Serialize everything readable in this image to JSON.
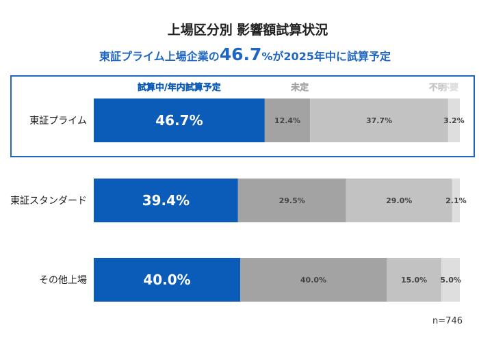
{
  "chart_data": {
    "type": "bar",
    "orientation": "horizontal",
    "stacked": true,
    "title": "上場区分別 影響額試算状況",
    "subtitle": {
      "prefix": "東証プライム上場企業の",
      "highlight_value": "46.7",
      "highlight_unit": "%",
      "suffix": "が2025年中に試算予定"
    },
    "categories": [
      "東証プライム",
      "東証スタンダード",
      "その他上場"
    ],
    "series": [
      {
        "name": "試算中/年内試算予定",
        "values": [
          46.7,
          39.4,
          40.0
        ],
        "labels": [
          "46.7%",
          "39.4%",
          "40.0%"
        ],
        "color": "#0b5cb8"
      },
      {
        "name": "未定",
        "values": [
          12.4,
          29.5,
          40.0
        ],
        "labels": [
          "12.4%",
          "29.5%",
          "40.0%"
        ],
        "color": "#a3a3a3"
      },
      {
        "name": "不明",
        "values": [
          37.7,
          29.0,
          15.0
        ],
        "labels": [
          "37.7%",
          "29.0%",
          "15.0%"
        ],
        "color": "#c2c2c2"
      },
      {
        "name": "不要",
        "values": [
          3.2,
          2.1,
          5.0
        ],
        "labels": [
          "3.2%",
          "2.1%",
          "5.0%"
        ],
        "color": "#dedede"
      }
    ],
    "xlim": [
      0,
      100
    ],
    "highlighted_category": "東証プライム",
    "highlight_color": "#1f66c2",
    "note": "n=746"
  }
}
